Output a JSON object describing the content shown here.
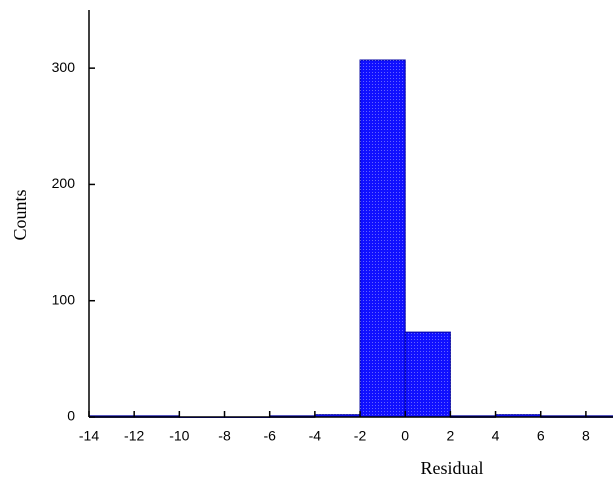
{
  "chart_data": {
    "type": "histogram",
    "x_label": "Residual",
    "y_label": "Counts",
    "bins": [
      -14,
      -12,
      -10,
      -8,
      -6,
      -4,
      -2,
      0,
      2,
      4,
      6,
      8,
      10
    ],
    "values": [
      1,
      1,
      0,
      0,
      1,
      2,
      307,
      73,
      1,
      2,
      1,
      1
    ],
    "color": "#1010ff",
    "xlim": [
      -14,
      9.2
    ],
    "ylim": [
      0,
      350
    ],
    "xticks": [
      -14,
      -12,
      -10,
      -8,
      -6,
      -4,
      -2,
      0,
      2,
      4,
      6,
      8
    ],
    "yticks": [
      0,
      100,
      200,
      300
    ],
    "grid": false
  }
}
